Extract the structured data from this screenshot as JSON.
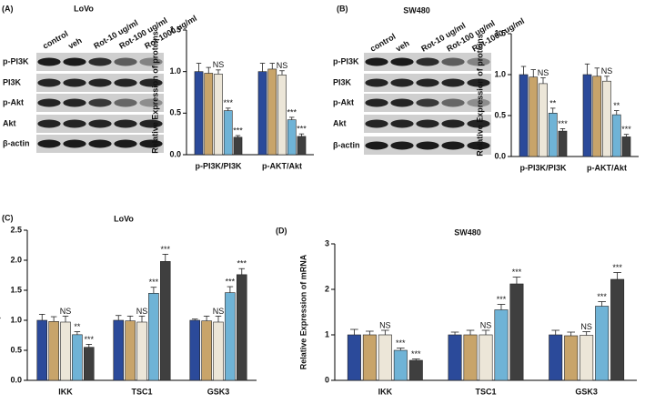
{
  "panels": [
    {
      "label": "(A)",
      "title": "LoVo",
      "lanes": [
        "control",
        "veh",
        "Rot-10 ug/ml",
        "Rot-100 ug/ml",
        "Rot-1000 ug/ml"
      ],
      "rows": [
        "p-PI3K",
        "PI3K",
        "p-Akt",
        "Akt",
        "β-actin"
      ]
    },
    {
      "label": "(B)",
      "title": "SW480",
      "lanes": [
        "control",
        "veh",
        "Rot-10 ug/ml",
        "Rot-100 ug/ml",
        "Rot-1000 ug/ml"
      ],
      "rows": [
        "p-PI3K",
        "PI3K",
        "p-Akt",
        "Akt",
        "β-actin"
      ]
    }
  ],
  "chart_data": [
    {
      "type": "bar",
      "y_label": "Relative Expression of proteins",
      "categories": [
        "p-PI3K/PI3K",
        "p-AKT/Akt"
      ],
      "ylim": [
        0,
        1.5
      ],
      "yticks": [
        {
          "value": 0,
          "label": "0.0"
        },
        0.5,
        {
          "value": 1,
          "label": "1.0"
        },
        1.5
      ],
      "series": [
        {
          "color": "#2b4a9a",
          "values": [
            1.0,
            1.0
          ],
          "errors": [
            0.1,
            0.1
          ]
        },
        {
          "color": "#c8a46a",
          "values": [
            0.98,
            1.03
          ],
          "errors": [
            0.07,
            0.07
          ]
        },
        {
          "color": "#ece6d8",
          "values": [
            0.97,
            0.96
          ],
          "errors": [
            0.05,
            0.05
          ],
          "significance": [
            "NS",
            "NS"
          ]
        },
        {
          "color": "#6fb3d6",
          "values": [
            0.53,
            0.42
          ],
          "errors": [
            0.03,
            0.03
          ],
          "significance": [
            "***",
            "***"
          ]
        },
        {
          "color": "#3f3f3f",
          "values": [
            0.21,
            0.22
          ],
          "errors": [
            0.02,
            0.03
          ],
          "significance": [
            "***",
            "***"
          ]
        }
      ]
    },
    {
      "type": "bar",
      "y_label": "Relative Expression of proteins",
      "categories": [
        "p-PI3K/PI3K",
        "p-AKT/Akt"
      ],
      "ylim": [
        0,
        1.5
      ],
      "yticks": [
        {
          "value": 0,
          "label": "0.0"
        },
        0.5,
        {
          "value": 1,
          "label": "1.0"
        },
        1.5
      ],
      "series": [
        {
          "color": "#2b4a9a",
          "values": [
            1.0,
            1.0
          ],
          "errors": [
            0.1,
            0.13
          ]
        },
        {
          "color": "#c8a46a",
          "values": [
            0.97,
            0.98
          ],
          "errors": [
            0.09,
            0.1
          ]
        },
        {
          "color": "#ece6d8",
          "values": [
            0.89,
            0.92
          ],
          "errors": [
            0.07,
            0.06
          ],
          "significance": [
            "NS",
            "NS"
          ]
        },
        {
          "color": "#6fb3d6",
          "values": [
            0.53,
            0.51
          ],
          "errors": [
            0.06,
            0.05
          ],
          "significance": [
            "**",
            "**"
          ]
        },
        {
          "color": "#3f3f3f",
          "values": [
            0.31,
            0.24
          ],
          "errors": [
            0.03,
            0.03
          ],
          "significance": [
            "***",
            "***"
          ]
        }
      ]
    },
    {
      "type": "bar",
      "panel_label": "(C)",
      "title": "LoVo",
      "y_label": "Relative Expression of mRNA",
      "categories": [
        "IKK",
        "TSC1",
        "GSK3"
      ],
      "ylim": [
        0,
        2.5
      ],
      "yticks": [
        {
          "value": 0,
          "label": "0.0"
        },
        0.5,
        {
          "value": 1,
          "label": "1.0"
        },
        1.5,
        {
          "value": 2,
          "label": "2.0"
        },
        2.5
      ],
      "series": [
        {
          "color": "#2b4a9a",
          "values": [
            1.0,
            1.0,
            1.0
          ],
          "errors": [
            0.1,
            0.08,
            0.02
          ]
        },
        {
          "color": "#c8a46a",
          "values": [
            0.98,
            0.99,
            0.99
          ],
          "errors": [
            0.08,
            0.08,
            0.08
          ]
        },
        {
          "color": "#ece6d8",
          "values": [
            0.97,
            0.97,
            0.97
          ],
          "errors": [
            0.1,
            0.1,
            0.1
          ],
          "significance": [
            "NS",
            "NS",
            "NS"
          ]
        },
        {
          "color": "#6fb3d6",
          "values": [
            0.76,
            1.45,
            1.46
          ],
          "errors": [
            0.05,
            0.1,
            0.1
          ],
          "significance": [
            "**",
            "***",
            "***"
          ]
        },
        {
          "color": "#3f3f3f",
          "values": [
            0.55,
            1.98,
            1.76
          ],
          "errors": [
            0.05,
            0.12,
            0.1
          ],
          "significance": [
            "***",
            "***",
            "***"
          ]
        }
      ]
    },
    {
      "type": "bar",
      "panel_label": "(D)",
      "title": "SW480",
      "y_label": "Relative Expression of mRNA",
      "categories": [
        "IKK",
        "TSC1",
        "GSK3"
      ],
      "ylim": [
        0,
        3
      ],
      "yticks": [
        0,
        1,
        2,
        3
      ],
      "series": [
        {
          "color": "#2b4a9a",
          "values": [
            1.0,
            1.0,
            1.0
          ],
          "errors": [
            0.12,
            0.06,
            0.1
          ]
        },
        {
          "color": "#c8a46a",
          "values": [
            1.0,
            1.0,
            0.98
          ],
          "errors": [
            0.08,
            0.1,
            0.08
          ]
        },
        {
          "color": "#ece6d8",
          "values": [
            1.0,
            1.0,
            0.99
          ],
          "errors": [
            0.1,
            0.1,
            0.08
          ],
          "significance": [
            "NS",
            "NS",
            "NS"
          ]
        },
        {
          "color": "#6fb3d6",
          "values": [
            0.66,
            1.55,
            1.63
          ],
          "errors": [
            0.05,
            0.12,
            0.1
          ],
          "significance": [
            "***",
            "***",
            "***"
          ]
        },
        {
          "color": "#3f3f3f",
          "values": [
            0.44,
            2.12,
            2.22
          ],
          "errors": [
            0.03,
            0.15,
            0.15
          ],
          "significance": [
            "***",
            "***",
            "***"
          ]
        }
      ]
    }
  ]
}
